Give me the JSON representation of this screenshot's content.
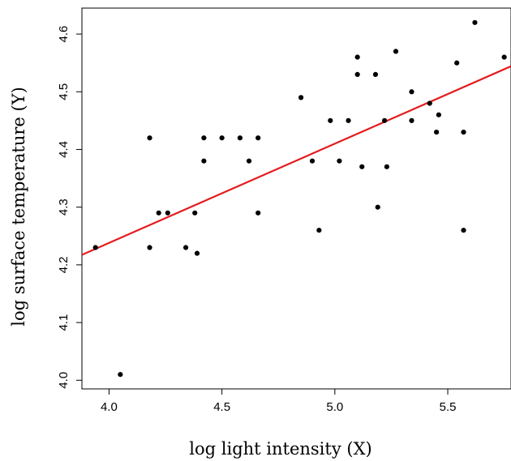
{
  "chart_data": {
    "type": "scatter",
    "title": "",
    "xlabel": "log light intensity (X)",
    "ylabel": "log surface temperature (Y)",
    "xlim": [
      3.88,
      5.78
    ],
    "ylim": [
      3.985,
      4.645
    ],
    "xticks": [
      4.0,
      4.5,
      5.0,
      5.5
    ],
    "xtick_labels": [
      "4.0",
      "4.5",
      "5.0",
      "5.5"
    ],
    "yticks": [
      4.0,
      4.1,
      4.2,
      4.3,
      4.4,
      4.5,
      4.6
    ],
    "ytick_labels": [
      "4.0",
      "4.1",
      "4.2",
      "4.3",
      "4.4",
      "4.5",
      "4.6"
    ],
    "grid": false,
    "point_color": "#000000",
    "line_color": "#e41a1c",
    "points": [
      {
        "x": 3.94,
        "y": 4.23
      },
      {
        "x": 4.05,
        "y": 4.01
      },
      {
        "x": 4.18,
        "y": 4.42
      },
      {
        "x": 4.18,
        "y": 4.23
      },
      {
        "x": 4.22,
        "y": 4.29
      },
      {
        "x": 4.26,
        "y": 4.29
      },
      {
        "x": 4.34,
        "y": 4.23
      },
      {
        "x": 4.38,
        "y": 4.29
      },
      {
        "x": 4.39,
        "y": 4.22
      },
      {
        "x": 4.42,
        "y": 4.42
      },
      {
        "x": 4.42,
        "y": 4.38
      },
      {
        "x": 4.5,
        "y": 4.42
      },
      {
        "x": 4.58,
        "y": 4.42
      },
      {
        "x": 4.62,
        "y": 4.38
      },
      {
        "x": 4.66,
        "y": 4.42
      },
      {
        "x": 4.66,
        "y": 4.29
      },
      {
        "x": 4.85,
        "y": 4.49
      },
      {
        "x": 4.9,
        "y": 4.38
      },
      {
        "x": 4.93,
        "y": 4.26
      },
      {
        "x": 4.98,
        "y": 4.45
      },
      {
        "x": 5.02,
        "y": 4.38
      },
      {
        "x": 5.06,
        "y": 4.45
      },
      {
        "x": 5.1,
        "y": 4.56
      },
      {
        "x": 5.1,
        "y": 4.53
      },
      {
        "x": 5.12,
        "y": 4.37
      },
      {
        "x": 5.18,
        "y": 4.53
      },
      {
        "x": 5.19,
        "y": 4.3
      },
      {
        "x": 5.22,
        "y": 4.45
      },
      {
        "x": 5.23,
        "y": 4.37
      },
      {
        "x": 5.27,
        "y": 4.57
      },
      {
        "x": 5.34,
        "y": 4.5
      },
      {
        "x": 5.34,
        "y": 4.45
      },
      {
        "x": 5.42,
        "y": 4.48
      },
      {
        "x": 5.45,
        "y": 4.43
      },
      {
        "x": 5.46,
        "y": 4.46
      },
      {
        "x": 5.54,
        "y": 4.55
      },
      {
        "x": 5.57,
        "y": 4.43
      },
      {
        "x": 5.57,
        "y": 4.26
      },
      {
        "x": 5.62,
        "y": 4.62
      },
      {
        "x": 5.75,
        "y": 4.56
      }
    ],
    "fit_line": {
      "intercept": 3.55,
      "slope": 0.172
    }
  }
}
